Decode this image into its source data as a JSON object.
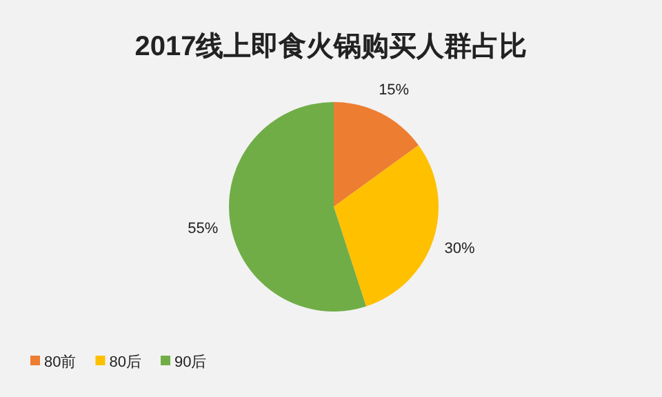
{
  "chart_data": {
    "type": "pie",
    "title": "2017线上即食火锅购买人群占比",
    "categories": [
      "80前",
      "80后",
      "90后"
    ],
    "values": [
      15,
      30,
      55
    ],
    "colors": [
      "#ed7d31",
      "#ffc000",
      "#70ad47"
    ],
    "value_labels": [
      "15%",
      "30%",
      "55%"
    ],
    "legend": "bottom left"
  }
}
